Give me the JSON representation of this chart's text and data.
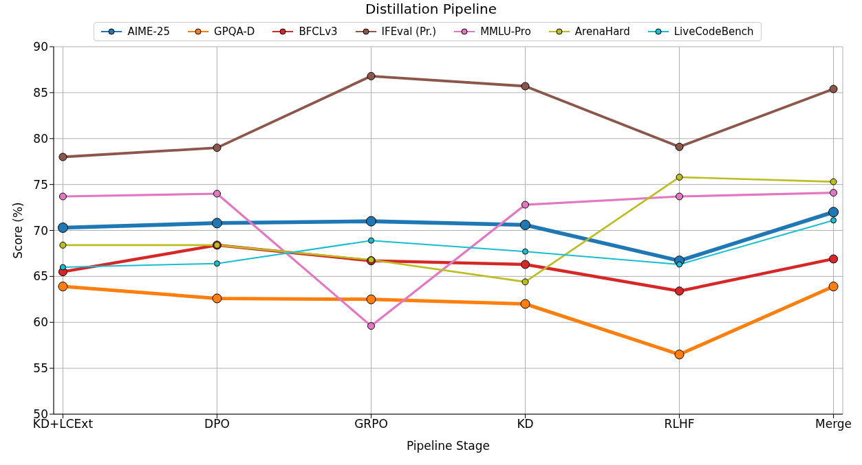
{
  "chart_data": {
    "type": "line",
    "title": "Distillation Pipeline",
    "xlabel": "Pipeline Stage",
    "ylabel": "Score (%)",
    "categories": [
      "KD+LCExt",
      "DPO",
      "GRPO",
      "KD",
      "RLHF",
      "Merge"
    ],
    "series": [
      {
        "name": "AIME-25",
        "color": "#1f77b4",
        "values": [
          70.3,
          70.8,
          71.0,
          70.6,
          66.7,
          72.0
        ]
      },
      {
        "name": "GPQA-D",
        "color": "#ff7f0e",
        "values": [
          63.9,
          62.6,
          62.5,
          62.0,
          56.5,
          63.9
        ]
      },
      {
        "name": "BFCLv3",
        "color": "#d62728",
        "values": [
          65.5,
          68.4,
          66.7,
          66.3,
          63.4,
          66.9
        ]
      },
      {
        "name": "IFEval (Pr.)",
        "color": "#8c564b",
        "values": [
          78.0,
          79.0,
          86.8,
          85.7,
          79.1,
          85.4
        ]
      },
      {
        "name": "MMLU-Pro",
        "color": "#e377c2",
        "values": [
          73.7,
          74.0,
          59.6,
          72.8,
          73.7,
          74.1
        ]
      },
      {
        "name": "ArenaHard",
        "color": "#bcbd22",
        "values": [
          68.4,
          68.4,
          66.8,
          64.4,
          75.8,
          75.3
        ]
      },
      {
        "name": "LiveCodeBench",
        "color": "#17becf",
        "values": [
          66.0,
          66.4,
          68.9,
          67.7,
          66.3,
          71.1
        ]
      }
    ],
    "ylim": [
      50,
      90
    ],
    "yticks": [
      50,
      55,
      60,
      65,
      70,
      75,
      80,
      85,
      90
    ],
    "grid": true,
    "legend": "top",
    "marker": "circle",
    "line_style": "solid"
  }
}
